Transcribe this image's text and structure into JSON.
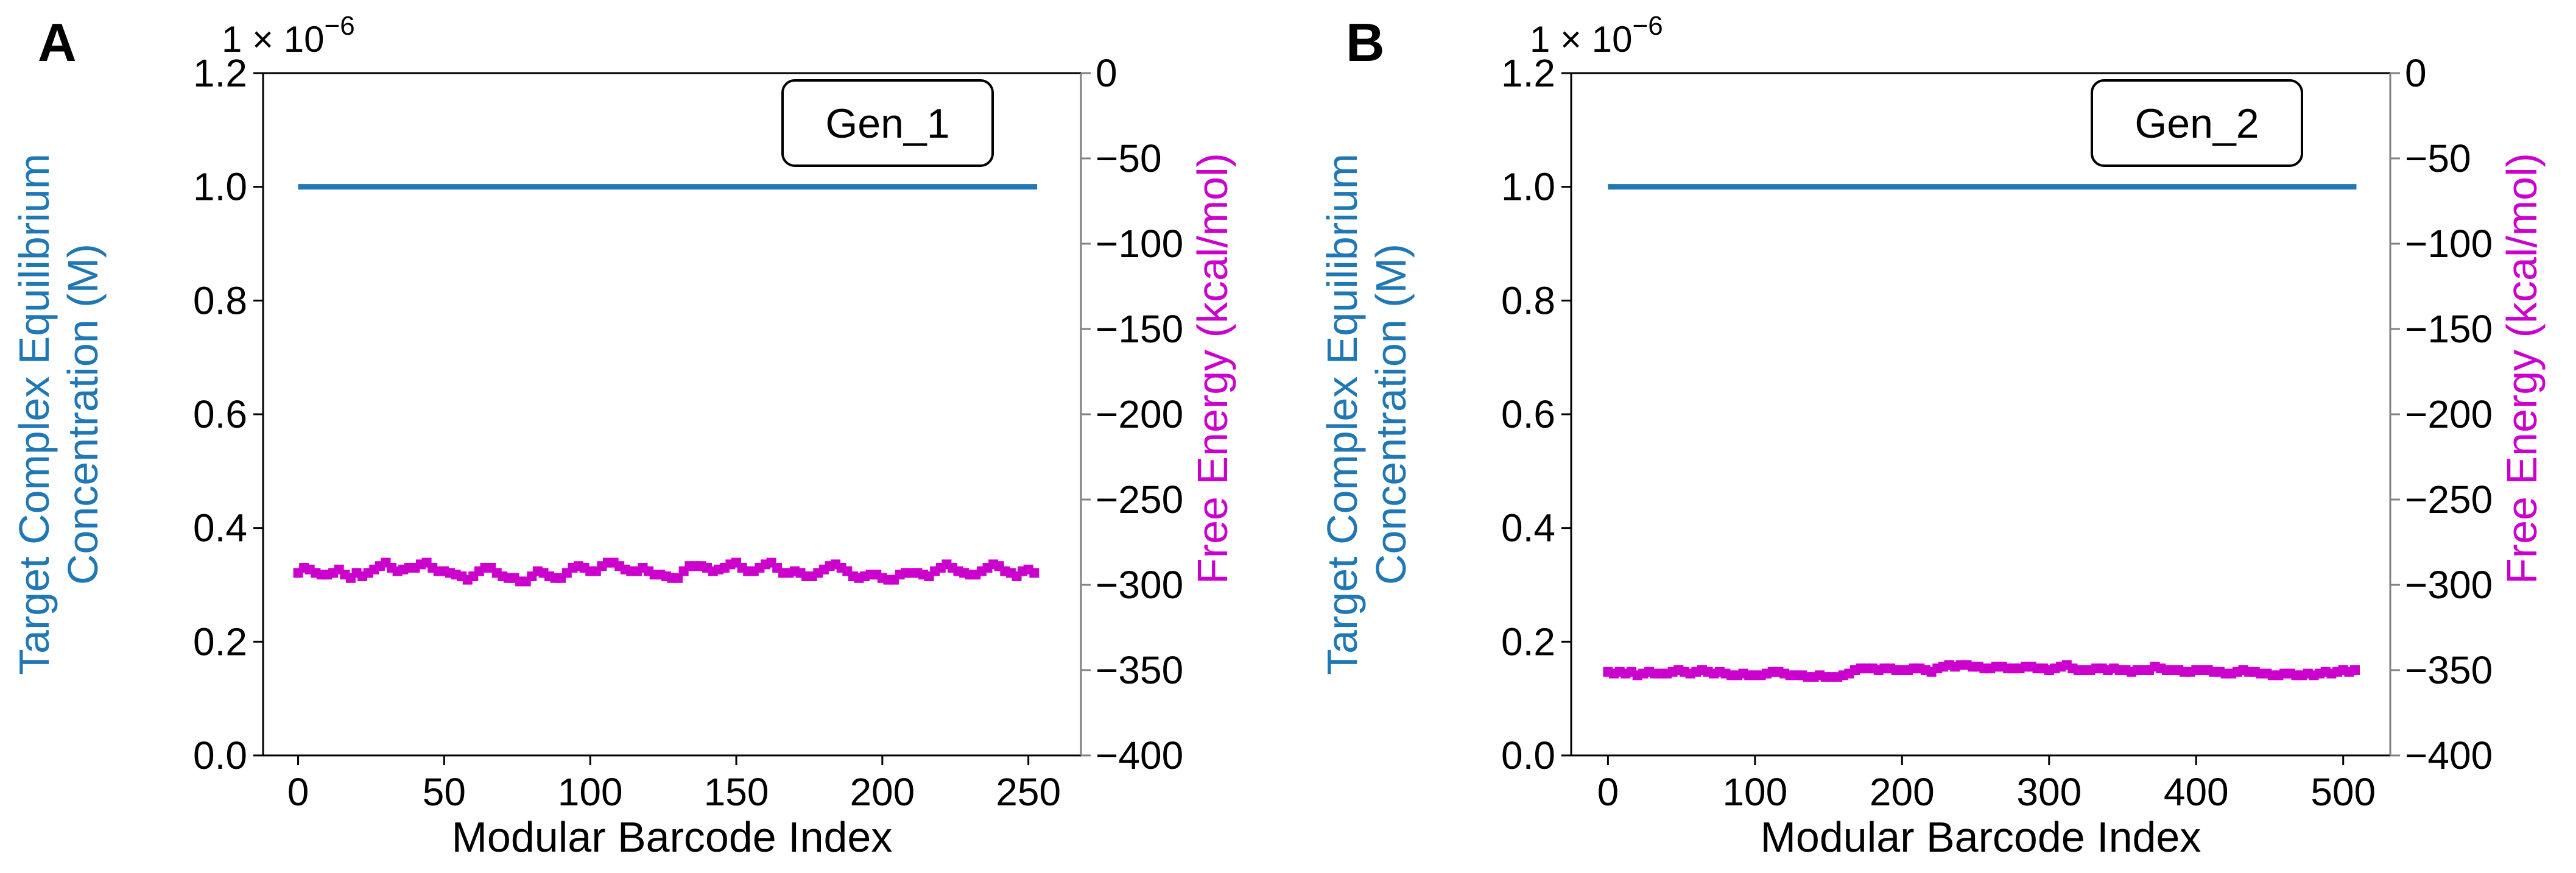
{
  "colors": {
    "concentration": "#1f77b4",
    "free_energy": "#cc00cc",
    "axis": "#000000",
    "right_axis": "#808080"
  },
  "chart_data": [
    {
      "panel_label": "A",
      "type": "line",
      "legend_text": "Gen_1",
      "legend_placement": "top-right",
      "xlabel": "Modular Barcode Index",
      "ylabel_left_line1": "Target Complex Equilibrium",
      "ylabel_left_line2": "Concentration (M)",
      "ylabel_right": "Free Energy (kcal/mol)",
      "offset_text": "1 × 10",
      "offset_exponent": "−6",
      "xlim": [
        -12,
        268
      ],
      "xticks": [
        0,
        50,
        100,
        150,
        200,
        250
      ],
      "xtick_labels": [
        "0",
        "50",
        "100",
        "150",
        "200",
        "250"
      ],
      "ylim_left": [
        0.0,
        1.2
      ],
      "yticks_left": [
        0.0,
        0.2,
        0.4,
        0.6,
        0.8,
        1.0,
        1.2
      ],
      "ytick_labels_left": [
        "0.0",
        "0.2",
        "0.4",
        "0.6",
        "0.8",
        "1.0",
        "1.2"
      ],
      "ylim_right": [
        -400,
        0
      ],
      "yticks_right": [
        0,
        -50,
        -100,
        -150,
        -200,
        -250,
        -300,
        -350,
        -400
      ],
      "ytick_labels_right": [
        "0",
        "−50",
        "−100",
        "−150",
        "−200",
        "−250",
        "−300",
        "−350",
        "−400"
      ],
      "grid": false,
      "series": [
        {
          "name": "Target Complex Equilibrium Concentration",
          "axis": "left",
          "style": "line",
          "x": [
            0,
            253
          ],
          "values": [
            1.0,
            1.0
          ]
        },
        {
          "name": "Free Energy",
          "axis": "right",
          "style": "line+square-markers",
          "x_start": 0,
          "x_step": 2,
          "values": [
            -293,
            -290,
            -291,
            -293,
            -294,
            -294,
            -293,
            -291,
            -294,
            -296,
            -293,
            -295,
            -293,
            -291,
            -289,
            -287,
            -290,
            -292,
            -291,
            -290,
            -290,
            -288,
            -287,
            -290,
            -292,
            -292,
            -293,
            -294,
            -295,
            -297,
            -295,
            -292,
            -290,
            -290,
            -293,
            -295,
            -296,
            -296,
            -298,
            -298,
            -295,
            -292,
            -293,
            -295,
            -296,
            -296,
            -293,
            -290,
            -289,
            -290,
            -292,
            -292,
            -289,
            -287,
            -287,
            -289,
            -291,
            -292,
            -292,
            -290,
            -292,
            -294,
            -294,
            -295,
            -296,
            -296,
            -292,
            -289,
            -289,
            -289,
            -290,
            -292,
            -291,
            -290,
            -288,
            -287,
            -290,
            -292,
            -292,
            -290,
            -288,
            -287,
            -290,
            -293,
            -293,
            -292,
            -293,
            -295,
            -295,
            -293,
            -291,
            -289,
            -288,
            -290,
            -292,
            -295,
            -296,
            -295,
            -294,
            -294,
            -296,
            -297,
            -297,
            -294,
            -293,
            -293,
            -293,
            -294,
            -295,
            -292,
            -290,
            -288,
            -290,
            -292,
            -293,
            -294,
            -294,
            -292,
            -290,
            -288,
            -289,
            -292,
            -293,
            -295,
            -292,
            -291,
            -293
          ]
        }
      ]
    },
    {
      "panel_label": "B",
      "type": "line",
      "legend_text": "Gen_2",
      "legend_placement": "top-right",
      "xlabel": "Modular Barcode Index",
      "ylabel_left_line1": "Target Complex Equilibrium",
      "ylabel_left_line2": "Concentration (M)",
      "ylabel_right": "Free Energy (kcal/mol)",
      "offset_text": "1 × 10",
      "offset_exponent": "−6",
      "xlim": [
        -25,
        532
      ],
      "xticks": [
        0,
        100,
        200,
        300,
        400,
        500
      ],
      "xtick_labels": [
        "0",
        "100",
        "200",
        "300",
        "400",
        "500"
      ],
      "ylim_left": [
        0.0,
        1.2
      ],
      "yticks_left": [
        0.0,
        0.2,
        0.4,
        0.6,
        0.8,
        1.0,
        1.2
      ],
      "ytick_labels_left": [
        "0.0",
        "0.2",
        "0.4",
        "0.6",
        "0.8",
        "1.0",
        "1.2"
      ],
      "ylim_right": [
        -400,
        0
      ],
      "yticks_right": [
        0,
        -50,
        -100,
        -150,
        -200,
        -250,
        -300,
        -350,
        -400
      ],
      "ytick_labels_right": [
        "0",
        "−50",
        "−100",
        "−150",
        "−200",
        "−250",
        "−300",
        "−350",
        "−400"
      ],
      "grid": false,
      "series": [
        {
          "name": "Target Complex Equilibrium Concentration",
          "axis": "left",
          "style": "line",
          "x": [
            0,
            509
          ],
          "values": [
            1.0,
            1.0
          ]
        },
        {
          "name": "Free Energy",
          "axis": "right",
          "style": "line+square-markers",
          "x_start": 0,
          "x_step": 4,
          "values": [
            -351,
            -352,
            -351,
            -352,
            -351,
            -353,
            -352,
            -351,
            -352,
            -352,
            -352,
            -351,
            -350,
            -351,
            -352,
            -351,
            -350,
            -351,
            -352,
            -351,
            -352,
            -353,
            -353,
            -352,
            -353,
            -353,
            -353,
            -352,
            -351,
            -351,
            -352,
            -353,
            -353,
            -353,
            -354,
            -354,
            -353,
            -354,
            -354,
            -354,
            -353,
            -352,
            -350,
            -349,
            -349,
            -349,
            -350,
            -349,
            -349,
            -350,
            -350,
            -350,
            -349,
            -349,
            -350,
            -351,
            -349,
            -348,
            -347,
            -348,
            -347,
            -347,
            -348,
            -348,
            -349,
            -349,
            -348,
            -348,
            -349,
            -349,
            -349,
            -348,
            -348,
            -349,
            -349,
            -350,
            -349,
            -348,
            -347,
            -349,
            -350,
            -350,
            -350,
            -349,
            -349,
            -350,
            -349,
            -350,
            -350,
            -351,
            -350,
            -350,
            -350,
            -348,
            -349,
            -350,
            -350,
            -350,
            -351,
            -351,
            -350,
            -350,
            -350,
            -351,
            -351,
            -352,
            -352,
            -351,
            -350,
            -351,
            -351,
            -352,
            -352,
            -353,
            -353,
            -352,
            -352,
            -353,
            -353,
            -352,
            -353,
            -352,
            -351,
            -352,
            -351,
            -350,
            -351,
            -350
          ]
        }
      ]
    }
  ]
}
